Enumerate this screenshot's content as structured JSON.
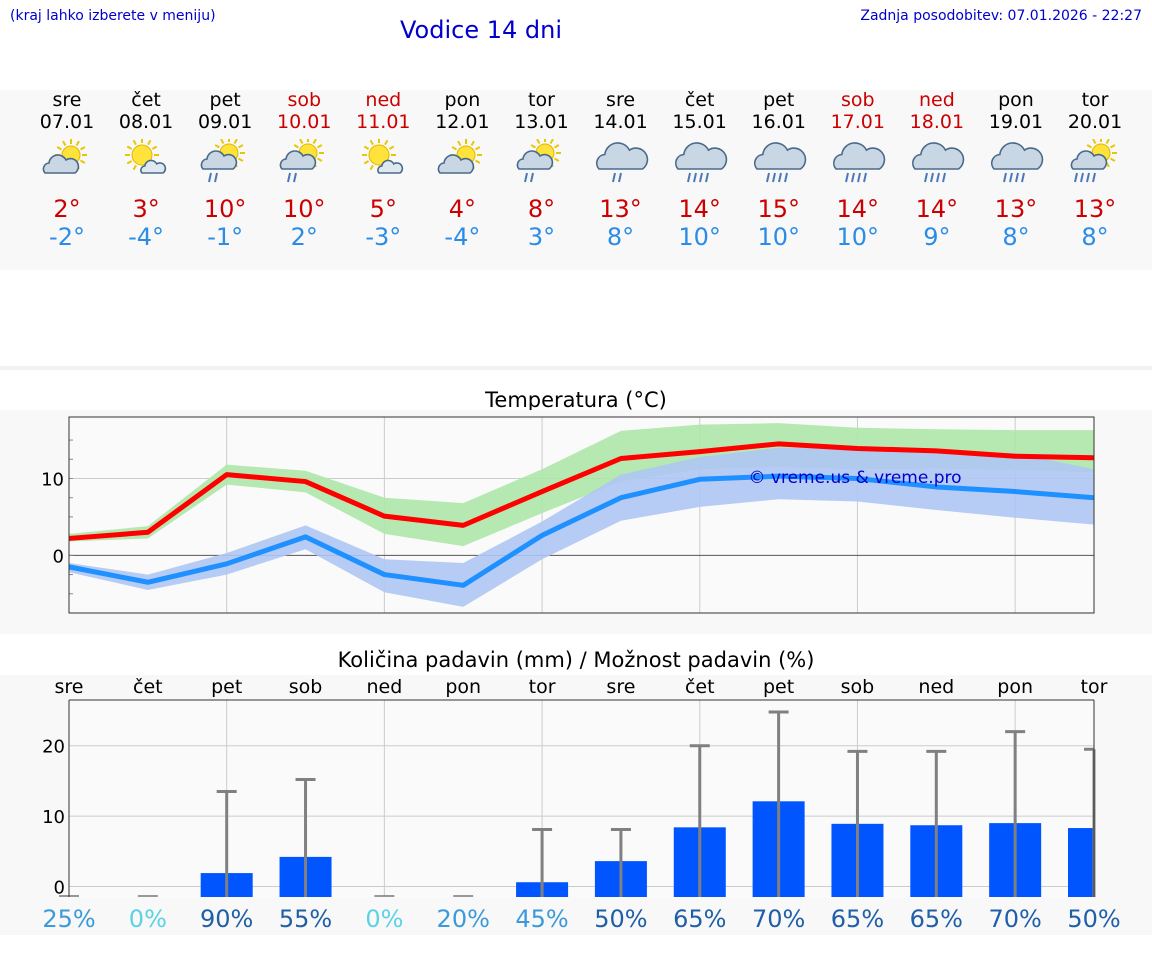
{
  "header": {
    "hint": "(kraj lahko izberete v meniju)",
    "title": "Vodice 14 dni",
    "updated": "Zadnja posodobitev: 07.01.2026 - 22:27"
  },
  "days": [
    {
      "name": "sre",
      "date": "07.01",
      "weekend": false,
      "icon": "partly-cloudy-icon",
      "max": "2°",
      "min": "-2°"
    },
    {
      "name": "čet",
      "date": "08.01",
      "weekend": false,
      "icon": "mostly-sunny-icon",
      "max": "3°",
      "min": "-4°"
    },
    {
      "name": "pet",
      "date": "09.01",
      "weekend": false,
      "icon": "sun-rain-icon",
      "max": "10°",
      "min": "-1°"
    },
    {
      "name": "sob",
      "date": "10.01",
      "weekend": true,
      "icon": "sun-rain-icon",
      "max": "10°",
      "min": "2°"
    },
    {
      "name": "ned",
      "date": "11.01",
      "weekend": true,
      "icon": "mostly-sunny-icon",
      "max": "5°",
      "min": "-3°"
    },
    {
      "name": "pon",
      "date": "12.01",
      "weekend": false,
      "icon": "partly-cloudy-icon",
      "max": "4°",
      "min": "-4°"
    },
    {
      "name": "tor",
      "date": "13.01",
      "weekend": false,
      "icon": "sun-rain-icon",
      "max": "8°",
      "min": "3°"
    },
    {
      "name": "sre",
      "date": "14.01",
      "weekend": false,
      "icon": "rain-icon",
      "max": "13°",
      "min": "8°"
    },
    {
      "name": "čet",
      "date": "15.01",
      "weekend": false,
      "icon": "heavy-rain-icon",
      "max": "14°",
      "min": "10°"
    },
    {
      "name": "pet",
      "date": "16.01",
      "weekend": false,
      "icon": "heavy-rain-icon",
      "max": "15°",
      "min": "10°"
    },
    {
      "name": "sob",
      "date": "17.01",
      "weekend": true,
      "icon": "heavy-rain-icon",
      "max": "14°",
      "min": "10°"
    },
    {
      "name": "ned",
      "date": "18.01",
      "weekend": true,
      "icon": "heavy-rain-icon",
      "max": "14°",
      "min": "9°"
    },
    {
      "name": "pon",
      "date": "19.01",
      "weekend": false,
      "icon": "heavy-rain-icon",
      "max": "13°",
      "min": "8°"
    },
    {
      "name": "tor",
      "date": "20.01",
      "weekend": false,
      "icon": "sun-heavy-rain-icon",
      "max": "13°",
      "min": "8°"
    }
  ],
  "chart_data": [
    {
      "type": "line",
      "title": "Temperatura (°C)",
      "ylim": [
        -7.5,
        18
      ],
      "yticks": [
        0,
        10
      ],
      "grid": true,
      "watermark": "© vreme.us & vreme.pro",
      "x": [
        0,
        1,
        2,
        3,
        4,
        5,
        6,
        7,
        8,
        9,
        10,
        11,
        12,
        13
      ],
      "series": [
        {
          "name": "max",
          "color": "#ff0000",
          "values": [
            2.2,
            3,
            10.5,
            9.6,
            5.1,
            3.9,
            8.3,
            12.6,
            13.5,
            14.5,
            13.9,
            13.6,
            12.9,
            12.7
          ],
          "band_low": [
            1.8,
            2.2,
            9.2,
            8.2,
            2.8,
            1.2,
            5.5,
            9.6,
            11.2,
            11.5,
            11.2,
            11.3,
            11.1,
            10.8
          ],
          "band_high": [
            2.8,
            3.8,
            11.8,
            11.0,
            7.5,
            6.8,
            11.2,
            16.2,
            17.0,
            17.2,
            16.6,
            16.4,
            16.3,
            16.3
          ],
          "band_color": "#aee6a8"
        },
        {
          "name": "min",
          "color": "#1e90ff",
          "values": [
            -1.5,
            -3.5,
            -1.1,
            2.4,
            -2.5,
            -3.9,
            2.6,
            7.5,
            9.9,
            10.3,
            10,
            8.9,
            8.3,
            7.5
          ],
          "band_low": [
            -2.2,
            -4.5,
            -2.5,
            0.8,
            -4.8,
            -6.7,
            -0.5,
            4.5,
            6.3,
            7.3,
            7.0,
            5.9,
            4.9,
            4.0
          ],
          "band_high": [
            -1.0,
            -2.5,
            0.3,
            3.9,
            -0.5,
            -1.0,
            4.4,
            10.5,
            12.8,
            14.0,
            13.9,
            13.5,
            13.3,
            11.2
          ],
          "band_color": "#aec6f4"
        }
      ]
    },
    {
      "type": "bar",
      "title": "Količina padavin (mm) / Možnost padavin (%)",
      "ylim": [
        -1.5,
        26.5
      ],
      "yticks": [
        0,
        10,
        20
      ],
      "grid": true,
      "categories": [
        "sre",
        "čet",
        "pet",
        "sob",
        "ned",
        "pon",
        "tor",
        "sre",
        "čet",
        "pet",
        "sob",
        "ned",
        "pon",
        "tor"
      ],
      "values": [
        0,
        0,
        1.9,
        4.2,
        0,
        0,
        0.6,
        3.6,
        8.4,
        12.1,
        8.9,
        8.7,
        9.0,
        8.3
      ],
      "error_high": [
        0,
        0,
        13.5,
        15.2,
        0,
        0,
        8.1,
        8.1,
        20,
        24.8,
        19.2,
        19.2,
        22,
        19.5
      ],
      "bar_color": "#0055ff",
      "chance": [
        "25%",
        "0%",
        "90%",
        "55%",
        "0%",
        "20%",
        "45%",
        "50%",
        "65%",
        "70%",
        "65%",
        "65%",
        "70%",
        "50%"
      ],
      "chance_colors": [
        "#3b9ad9",
        "#5bd2e6",
        "#1f5fa8",
        "#1f5fa8",
        "#5bd2e6",
        "#3b9ad9",
        "#3b9ad9",
        "#1f5fa8",
        "#1f5fa8",
        "#1f5fa8",
        "#1f5fa8",
        "#1f5fa8",
        "#1f5fa8",
        "#1f5fa8"
      ]
    }
  ]
}
